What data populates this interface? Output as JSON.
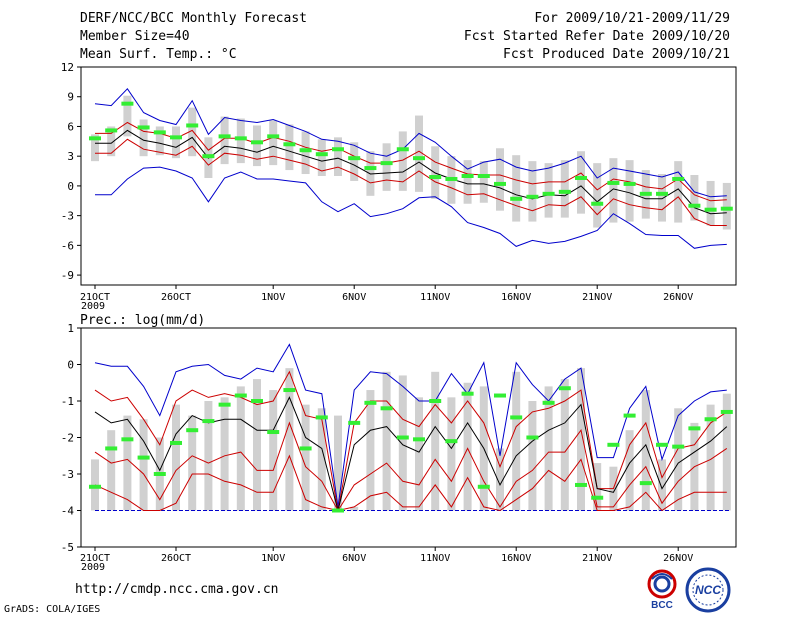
{
  "header": {
    "title": "DERF/NCC/BCC Monthly Forecast",
    "member_size": "Member Size=40",
    "variable": "Mean Surf. Temp.: °C",
    "period": "For 2009/10/21-2009/11/29",
    "fcst_started": "Fcst Started Refer Date 2009/10/20",
    "fcst_produced": "Fcst Produced Date 2009/10/21"
  },
  "footer": {
    "url": "http://cmdp.ncc.cma.gov.cn",
    "credit": "GrADS: COLA/IGES",
    "logo_left_text": "BCC",
    "logo_right_text": "NCC"
  },
  "colors": {
    "envelope": "#0000cc",
    "inner": "#cc0000",
    "mean": "#000000",
    "observed": "#33ee33",
    "bar": "#d0d0d0",
    "baseline": "#0000cc"
  },
  "chart_data": [
    {
      "type": "line",
      "title": "Mean Surf. Temp.: °C",
      "x_tick_labels": [
        "21OCT\n2009",
        "26OCT",
        "1NOV",
        "6NOV",
        "11NOV",
        "16NOV",
        "21NOV",
        "26NOV"
      ],
      "x_tick_day_index": [
        0,
        5,
        11,
        16,
        21,
        26,
        31,
        36
      ],
      "ylim": [
        -10,
        12
      ],
      "yticks": [
        -9,
        -6,
        -3,
        0,
        3,
        6,
        9,
        12
      ],
      "bars_top": [
        5.2,
        6.0,
        9.1,
        6.7,
        6.0,
        6.0,
        7.9,
        4.9,
        7.0,
        6.8,
        6.1,
        6.6,
        6.2,
        5.5,
        4.7,
        4.9,
        4.4,
        3.5,
        4.3,
        5.5,
        7.1,
        4.0,
        3.0,
        2.6,
        2.5,
        3.8,
        3.1,
        2.5,
        2.3,
        2.6,
        3.5,
        2.3,
        2.8,
        2.6,
        1.6,
        1.2,
        2.5,
        1.1,
        0.5,
        0.3
      ],
      "bars_bottom": [
        2.5,
        3.0,
        5.0,
        3.0,
        3.1,
        2.8,
        3.0,
        0.8,
        2.2,
        2.3,
        2.0,
        2.1,
        1.6,
        1.2,
        1.0,
        1.0,
        0.5,
        -1.0,
        -0.5,
        -0.5,
        -0.6,
        -1.3,
        -1.8,
        -1.8,
        -1.7,
        -2.5,
        -3.6,
        -3.6,
        -3.2,
        -3.2,
        -2.8,
        -4.2,
        -3.7,
        -3.6,
        -3.3,
        -3.6,
        -3.7,
        -3.5,
        -4.0,
        -4.4
      ],
      "series": [
        {
          "name": "max",
          "color": "#0000cc",
          "values": [
            8.3,
            8.1,
            9.8,
            7.4,
            6.6,
            6.2,
            8.6,
            5.2,
            6.9,
            6.6,
            6.4,
            6.7,
            6.1,
            5.5,
            4.7,
            4.5,
            4.1,
            3.3,
            3.0,
            3.7,
            5.3,
            4.4,
            3.0,
            1.7,
            2.4,
            2.7,
            1.9,
            1.5,
            1.8,
            2.3,
            3.0,
            0.8,
            1.8,
            1.5,
            1.2,
            0.9,
            1.4,
            -0.6,
            -1.1,
            -1.0
          ]
        },
        {
          "name": "upper",
          "color": "#cc0000",
          "values": [
            5.3,
            5.3,
            6.4,
            5.5,
            5.3,
            4.8,
            5.6,
            3.6,
            4.8,
            4.8,
            4.3,
            4.9,
            4.5,
            3.9,
            3.5,
            3.8,
            3.0,
            2.3,
            2.3,
            2.6,
            3.5,
            2.4,
            1.8,
            1.2,
            1.1,
            1.1,
            0.6,
            0.2,
            0.4,
            0.4,
            1.3,
            -0.4,
            0.7,
            0.4,
            -0.1,
            -0.3,
            0.7,
            -0.9,
            -1.5,
            -1.4
          ]
        },
        {
          "name": "mean",
          "color": "#000000",
          "values": [
            4.3,
            4.3,
            5.6,
            4.6,
            4.3,
            3.9,
            4.9,
            2.8,
            4.0,
            3.8,
            3.4,
            4.0,
            3.5,
            3.0,
            2.5,
            2.8,
            2.1,
            1.2,
            1.3,
            1.4,
            2.4,
            1.3,
            0.7,
            0.2,
            0.2,
            -0.2,
            -0.9,
            -1.3,
            -0.9,
            -1.0,
            0.0,
            -1.6,
            -0.3,
            -0.7,
            -1.3,
            -1.3,
            -0.3,
            -2.2,
            -2.8,
            -2.7
          ]
        },
        {
          "name": "lower",
          "color": "#cc0000",
          "values": [
            3.3,
            3.3,
            4.7,
            3.7,
            3.4,
            3.1,
            4.0,
            2.1,
            3.3,
            3.1,
            2.7,
            3.0,
            2.6,
            2.2,
            1.5,
            1.9,
            1.2,
            0.3,
            0.6,
            0.4,
            1.5,
            0.4,
            -0.2,
            -0.9,
            -0.8,
            -1.4,
            -2.0,
            -2.5,
            -1.9,
            -2.0,
            -1.1,
            -2.9,
            -1.3,
            -1.9,
            -2.2,
            -2.4,
            -1.1,
            -3.3,
            -4.0,
            -4.0
          ]
        },
        {
          "name": "min",
          "color": "#0000cc",
          "values": [
            -0.9,
            -0.9,
            0.7,
            1.8,
            1.9,
            1.5,
            0.8,
            -1.6,
            0.8,
            1.4,
            0.7,
            0.7,
            0.5,
            0.3,
            -1.6,
            -2.6,
            -1.8,
            -3.1,
            -2.8,
            -2.3,
            -1.2,
            -1.1,
            -2.1,
            -3.7,
            -4.2,
            -4.8,
            -6.1,
            -5.5,
            -5.8,
            -5.6,
            -5.1,
            -4.5,
            -2.8,
            -3.8,
            -4.9,
            -5.0,
            -5.0,
            -6.3,
            -6.0,
            -5.9
          ]
        },
        {
          "name": "observed",
          "color": "#33ee33",
          "values": [
            4.8,
            5.6,
            8.3,
            5.9,
            5.4,
            4.9,
            6.1,
            3.0,
            5.0,
            4.8,
            4.4,
            5.0,
            4.2,
            3.6,
            3.2,
            3.7,
            2.8,
            1.8,
            2.3,
            3.7,
            2.8,
            0.9,
            0.7,
            1.0,
            1.0,
            0.2,
            -1.3,
            -1.1,
            -0.8,
            -0.6,
            0.8,
            -1.8,
            0.3,
            0.2,
            -0.8,
            -0.8,
            0.7,
            -2.0,
            -2.4,
            -2.3
          ]
        }
      ]
    },
    {
      "type": "line",
      "title": "Prec.: log(mm/d)",
      "x_tick_labels": [
        "21OCT\n2009",
        "26OCT",
        "1NOV",
        "6NOV",
        "11NOV",
        "16NOV",
        "21NOV",
        "26NOV"
      ],
      "x_tick_day_index": [
        0,
        5,
        11,
        16,
        21,
        26,
        31,
        36
      ],
      "ylim": [
        -5,
        1
      ],
      "yticks": [
        -5,
        -4,
        -3,
        -2,
        -1,
        0,
        1
      ],
      "baseline": -4,
      "bars_top": [
        -2.6,
        -1.8,
        -1.4,
        -1.5,
        -2.0,
        -1.1,
        -1.4,
        -1.0,
        -0.9,
        -0.6,
        -0.4,
        -0.7,
        -0.1,
        -1.1,
        -1.2,
        -1.4,
        -3.9,
        -0.7,
        -0.2,
        -0.3,
        -0.9,
        -0.2,
        -0.9,
        -0.5,
        -0.6,
        -2.3,
        -0.2,
        -1.0,
        -0.6,
        -0.4,
        -0.1,
        -2.7,
        -2.8,
        -1.8,
        -0.7,
        -2.6,
        -1.2,
        -1.6,
        -1.1,
        -0.8
      ],
      "bars_bottom": [
        -4,
        -4,
        -4,
        -4,
        -4,
        -4,
        -4,
        -4,
        -4,
        -4,
        -4,
        -4,
        -4,
        -4,
        -4,
        -4,
        -4,
        -4,
        -4,
        -4,
        -4,
        -4,
        -4,
        -4,
        -4,
        -4,
        -4,
        -4,
        -4,
        -4,
        -4,
        -4,
        -4,
        -4,
        -4,
        -4,
        -4,
        -4,
        -4,
        -4
      ],
      "series": [
        {
          "name": "max",
          "color": "#0000cc",
          "values": [
            0.05,
            -0.05,
            -0.05,
            -0.6,
            -1.4,
            -0.2,
            -0.05,
            0.0,
            -0.3,
            -0.4,
            -0.1,
            -0.2,
            0.55,
            -0.7,
            -0.8,
            -3.9,
            -0.7,
            -0.2,
            -0.25,
            -0.6,
            -1.0,
            -1.0,
            -0.25,
            -0.8,
            0.05,
            -2.5,
            0.05,
            -0.55,
            -1.0,
            -0.4,
            -0.1,
            -2.55,
            -2.55,
            -1.2,
            -0.6,
            -2.6,
            -1.4,
            -1.0,
            -0.75,
            -0.7
          ]
        },
        {
          "name": "upper",
          "color": "#cc0000",
          "values": [
            -0.7,
            -1.0,
            -0.9,
            -1.5,
            -2.2,
            -1.0,
            -0.7,
            -0.9,
            -0.8,
            -0.9,
            -1.1,
            -1.0,
            -0.2,
            -1.4,
            -1.5,
            -4.0,
            -1.6,
            -1.0,
            -1.0,
            -1.5,
            -1.7,
            -1.1,
            -1.6,
            -1.0,
            -1.6,
            -2.8,
            -1.7,
            -1.3,
            -1.2,
            -1.0,
            -0.7,
            -3.4,
            -3.4,
            -2.2,
            -1.6,
            -3.1,
            -2.3,
            -2.2,
            -1.6,
            -1.3
          ]
        },
        {
          "name": "mean",
          "color": "#000000",
          "values": [
            -1.3,
            -1.6,
            -1.5,
            -2.1,
            -2.9,
            -1.9,
            -1.4,
            -1.6,
            -1.5,
            -1.5,
            -1.8,
            -1.8,
            -0.9,
            -2.0,
            -2.3,
            -4.0,
            -2.2,
            -1.8,
            -1.7,
            -2.2,
            -2.4,
            -1.7,
            -2.3,
            -1.6,
            -2.3,
            -3.3,
            -2.5,
            -2.1,
            -1.8,
            -1.6,
            -1.1,
            -3.4,
            -3.5,
            -2.7,
            -2.2,
            -3.4,
            -2.7,
            -2.4,
            -2.1,
            -1.7
          ]
        },
        {
          "name": "lower",
          "color": "#cc0000",
          "values": [
            -2.4,
            -2.7,
            -2.6,
            -3.0,
            -3.7,
            -2.9,
            -2.5,
            -2.7,
            -2.5,
            -2.4,
            -2.9,
            -2.9,
            -1.6,
            -2.8,
            -3.2,
            -4.0,
            -3.3,
            -3.0,
            -2.7,
            -3.2,
            -3.3,
            -2.6,
            -3.2,
            -2.3,
            -3.2,
            -3.9,
            -3.2,
            -2.9,
            -2.4,
            -2.4,
            -1.8,
            -3.9,
            -3.9,
            -3.3,
            -2.8,
            -3.8,
            -3.2,
            -2.8,
            -2.6,
            -2.3
          ]
        },
        {
          "name": "min",
          "color": "#cc0000",
          "values": [
            -3.3,
            -3.5,
            -3.7,
            -4.0,
            -4.0,
            -3.8,
            -3.0,
            -3.0,
            -3.2,
            -3.3,
            -3.5,
            -3.5,
            -2.5,
            -3.7,
            -3.9,
            -4.0,
            -3.9,
            -3.6,
            -3.5,
            -3.9,
            -3.9,
            -3.3,
            -3.9,
            -3.1,
            -3.9,
            -4.0,
            -3.7,
            -3.4,
            -2.9,
            -3.2,
            -2.6,
            -4.0,
            -4.0,
            -3.9,
            -3.5,
            -4.0,
            -3.7,
            -3.5,
            -3.5,
            -3.5
          ]
        },
        {
          "name": "observed",
          "color": "#33ee33",
          "values": [
            -3.35,
            -2.3,
            -2.05,
            -2.55,
            -3.0,
            -2.15,
            -1.8,
            -1.55,
            -1.1,
            -0.85,
            -1.0,
            -1.85,
            -0.7,
            -2.3,
            -1.45,
            -4.0,
            -1.6,
            -1.05,
            -1.2,
            -2.0,
            -2.05,
            -1.0,
            -2.1,
            -0.8,
            -3.35,
            -0.85,
            -1.45,
            -2.0,
            -1.05,
            -0.65,
            -3.3,
            -3.65,
            -2.2,
            -1.4,
            -3.25,
            -2.2,
            -2.25,
            -1.75,
            -1.5,
            -1.3
          ]
        }
      ]
    }
  ]
}
